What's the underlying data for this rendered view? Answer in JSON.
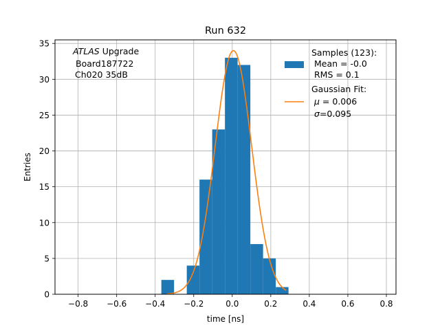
{
  "chart_data": {
    "type": "bar",
    "title": "Run 632",
    "xlabel": "time [ns]",
    "ylabel": "Entries",
    "xlim": [
      -0.92,
      0.85
    ],
    "ylim": [
      0,
      35.5
    ],
    "grid": true,
    "xticks": [
      -0.8,
      -0.6,
      -0.4,
      -0.2,
      0.0,
      0.2,
      0.4,
      0.6,
      0.8
    ],
    "xtick_labels": [
      "−0.8",
      "−0.6",
      "−0.4",
      "−0.2",
      "0.0",
      "0.2",
      "0.4",
      "0.6",
      "0.8"
    ],
    "yticks": [
      0,
      5,
      10,
      15,
      20,
      25,
      30,
      35
    ],
    "ytick_labels": [
      "0",
      "5",
      "10",
      "15",
      "20",
      "25",
      "30",
      "35"
    ],
    "annotation": {
      "line1_italic": "ATLAS",
      "line1_rest": " Upgrade",
      "line2": "Board187722",
      "line3": "Ch020 35dB"
    },
    "histogram": {
      "color": "#1f77b4",
      "bin_edges": [
        -0.368,
        -0.302,
        -0.236,
        -0.17,
        -0.104,
        -0.038,
        0.028,
        0.094,
        0.16,
        0.226,
        0.292
      ],
      "values": [
        2,
        0,
        4,
        16,
        23,
        33,
        32,
        7,
        5,
        1
      ]
    },
    "gaussian_fit": {
      "color": "#ff7f0e",
      "mu": 0.006,
      "sigma": 0.095,
      "amplitude": 34,
      "x_range": [
        -0.34,
        0.28
      ]
    },
    "legend": {
      "position": "top-right",
      "samples_lines": [
        "Samples (123):",
        " Mean = -0.0",
        " RMS = 0.1"
      ],
      "fit_title": "Gaussian Fit:",
      "fit_mu_symbol": "μ",
      "fit_mu_rest": " = 0.006",
      "fit_sigma_symbol": "σ",
      "fit_sigma_rest": "=0.095"
    }
  }
}
